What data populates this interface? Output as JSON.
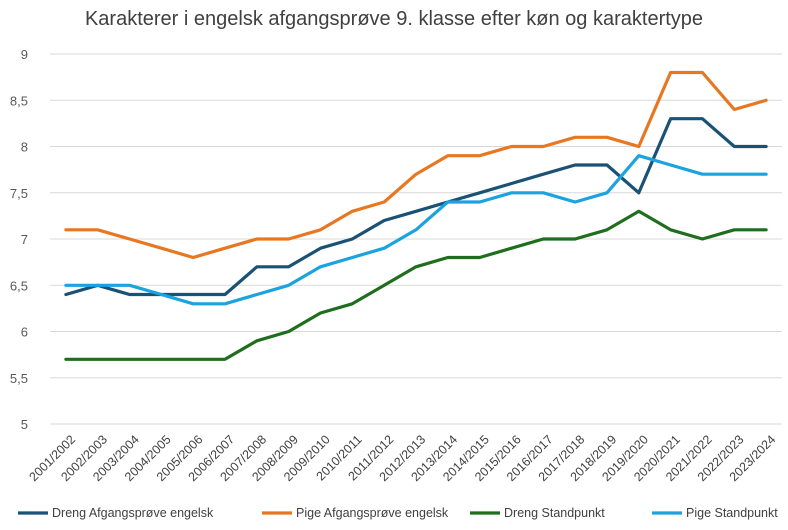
{
  "chart_data": {
    "type": "line",
    "title": "Karakterer i engelsk afgangsprøve 9. klasse efter køn og karaktertype",
    "xlabel": "",
    "ylabel": "",
    "ylim": [
      5,
      9
    ],
    "yticks": [
      "5",
      "5,5",
      "6",
      "6,5",
      "7",
      "7,5",
      "8",
      "8,5",
      "9"
    ],
    "yticks_values": [
      5,
      5.5,
      6,
      6.5,
      7,
      7.5,
      8,
      8.5,
      9
    ],
    "grid": true,
    "legend_position": "bottom",
    "categories": [
      "2001/2002",
      "2002/2003",
      "2003/2004",
      "2004/2005",
      "2005/2006",
      "2006/2007",
      "2007/2008",
      "2008/2009",
      "2009/2010",
      "2010/2011",
      "2011/2012",
      "2012/2013",
      "2013/2014",
      "2014/2015",
      "2015/2016",
      "2016/2017",
      "2017/2018",
      "2018/2019",
      "2019/2020",
      "2020/2021",
      "2021/2022",
      "2022/2023",
      "2023/2024"
    ],
    "series": [
      {
        "name": "Dreng Afgangsprøve engelsk",
        "color": "#1a5276",
        "values": [
          6.4,
          6.5,
          6.4,
          6.4,
          6.4,
          6.4,
          6.7,
          6.7,
          6.9,
          7.0,
          7.2,
          7.3,
          7.4,
          7.5,
          7.6,
          7.7,
          7.8,
          7.8,
          7.5,
          8.3,
          8.3,
          8.0,
          8.0
        ]
      },
      {
        "name": "Pige Afgangsprøve engelsk",
        "color": "#e87722",
        "values": [
          7.1,
          7.1,
          7.0,
          6.9,
          6.8,
          6.9,
          7.0,
          7.0,
          7.1,
          7.3,
          7.4,
          7.7,
          7.9,
          7.9,
          8.0,
          8.0,
          8.1,
          8.1,
          8.0,
          8.8,
          8.8,
          8.4,
          8.5
        ]
      },
      {
        "name": "Dreng Standpunkt",
        "color": "#1e6e1e",
        "values": [
          5.7,
          5.7,
          5.7,
          5.7,
          5.7,
          5.7,
          5.9,
          6.0,
          6.2,
          6.3,
          6.5,
          6.7,
          6.8,
          6.8,
          6.9,
          7.0,
          7.0,
          7.1,
          7.3,
          7.1,
          7.0,
          7.1,
          7.1
        ]
      },
      {
        "name": "Pige Standpunkt",
        "color": "#1aa3de",
        "values": [
          6.5,
          6.5,
          6.5,
          6.4,
          6.3,
          6.3,
          6.4,
          6.5,
          6.7,
          6.8,
          6.9,
          7.1,
          7.4,
          7.4,
          7.5,
          7.5,
          7.4,
          7.5,
          7.9,
          7.8,
          7.7,
          7.7,
          7.7
        ]
      }
    ]
  }
}
